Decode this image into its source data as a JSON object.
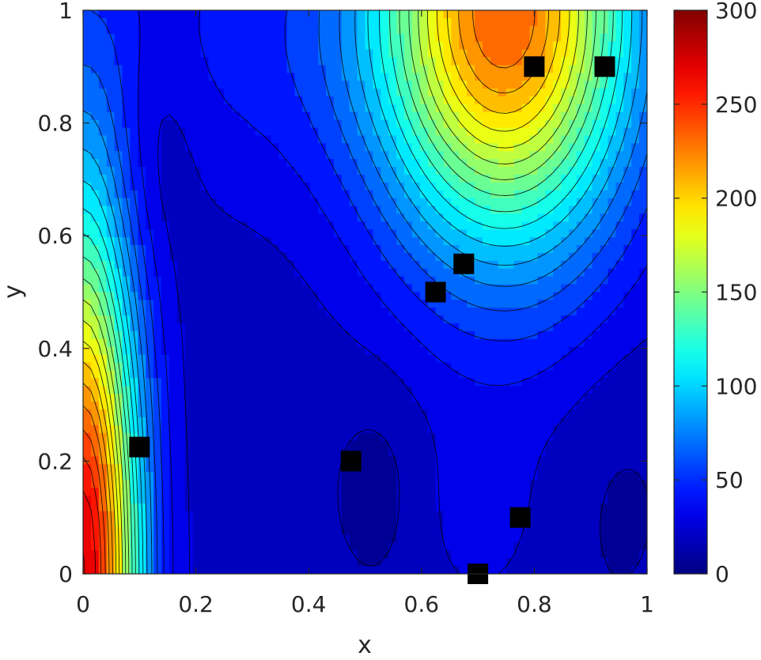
{
  "chart_data": {
    "type": "contour",
    "title": "",
    "xlabel": "x",
    "ylabel": "y",
    "xlim": [
      0,
      1
    ],
    "ylim": [
      0,
      1
    ],
    "xticks": [
      {
        "value": 0,
        "label": "0"
      },
      {
        "value": 0.2,
        "label": "0.2"
      },
      {
        "value": 0.4,
        "label": "0.4"
      },
      {
        "value": 0.6,
        "label": "0.6"
      },
      {
        "value": 0.8,
        "label": "0.8"
      },
      {
        "value": 1,
        "label": "1"
      }
    ],
    "yticks": [
      {
        "value": 0,
        "label": "0"
      },
      {
        "value": 0.2,
        "label": "0.2"
      },
      {
        "value": 0.4,
        "label": "0.4"
      },
      {
        "value": 0.6,
        "label": "0.6"
      },
      {
        "value": 0.8,
        "label": "0.8"
      },
      {
        "value": 1,
        "label": "1"
      }
    ],
    "colorbar": {
      "colormap": "jet",
      "clim": [
        0,
        300
      ],
      "ticks": [
        {
          "value": 0,
          "label": "0"
        },
        {
          "value": 50,
          "label": "50"
        },
        {
          "value": 100,
          "label": "100"
        },
        {
          "value": 150,
          "label": "150"
        },
        {
          "value": 200,
          "label": "200"
        },
        {
          "value": 250,
          "label": "250"
        },
        {
          "value": 300,
          "label": "300"
        }
      ]
    },
    "contour_step": 12.5,
    "field_peaks": [
      {
        "x": 0.0,
        "y": 0.0,
        "value": 275
      },
      {
        "x": 0.75,
        "y": 1.0,
        "value": 232
      }
    ],
    "field_minima": [
      {
        "x": 0.13,
        "y": 0.77,
        "value": 8
      },
      {
        "x": 0.52,
        "y": 0.16,
        "value": 9
      },
      {
        "x": 0.95,
        "y": 0.15,
        "value": 16
      }
    ],
    "points": [
      {
        "x": 0.1,
        "y": 0.225
      },
      {
        "x": 0.475,
        "y": 0.2
      },
      {
        "x": 0.625,
        "y": 0.5
      },
      {
        "x": 0.675,
        "y": 0.55
      },
      {
        "x": 0.7,
        "y": 0.0
      },
      {
        "x": 0.775,
        "y": 0.1
      },
      {
        "x": 0.8,
        "y": 0.9
      },
      {
        "x": 0.925,
        "y": 0.9
      }
    ],
    "marker": {
      "shape": "square",
      "color": "#000000"
    }
  }
}
